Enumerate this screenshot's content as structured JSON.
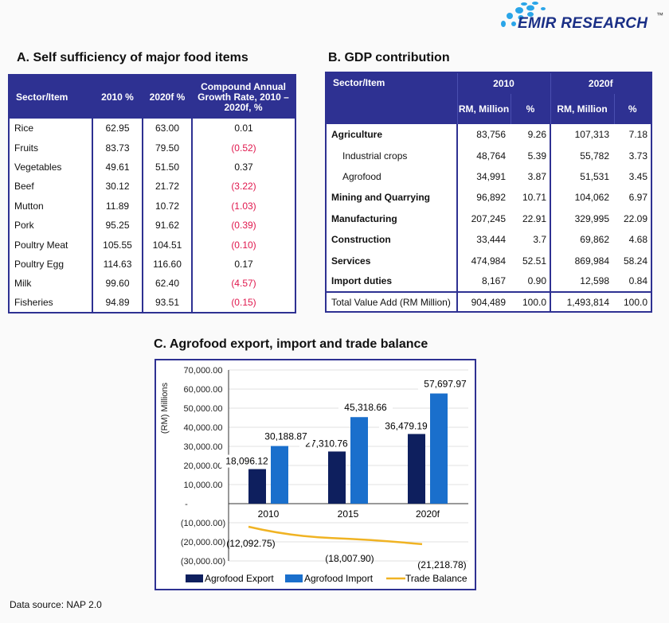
{
  "logo": {
    "text": "EMIR RESEARCH",
    "tm": "™"
  },
  "tableA": {
    "title": "A. Self sufficiency of major food items",
    "headers": [
      "Sector/Item",
      "2010 %",
      "2020f %",
      "Compound Annual Growth Rate, 2010 –2020f, %"
    ],
    "rows": [
      [
        "Rice",
        "62.95",
        "63.00",
        "0.01"
      ],
      [
        "Fruits",
        "83.73",
        "79.50",
        "(0.52)"
      ],
      [
        "Vegetables",
        "49.61",
        "51.50",
        "0.37"
      ],
      [
        "Beef",
        "30.12",
        "21.72",
        "(3.22)"
      ],
      [
        "Mutton",
        "11.89",
        "10.72",
        "(1.03)"
      ],
      [
        "Pork",
        "95.25",
        "91.62",
        "(0.39)"
      ],
      [
        "Poultry Meat",
        "105.55",
        "104.51",
        "(0.10)"
      ],
      [
        "Poultry Egg",
        "114.63",
        "116.60",
        "0.17"
      ],
      [
        "Milk",
        "99.60",
        "62.40",
        "(4.57)"
      ],
      [
        "Fisheries",
        "94.89",
        "93.51",
        "(0.15)"
      ]
    ]
  },
  "tableB": {
    "title": "B. GDP contribution",
    "header_item": "Sector/Item",
    "years": [
      "2010",
      "2020f"
    ],
    "subheaders": [
      "RM, Million",
      "%",
      "RM, Million",
      "%"
    ],
    "rows": [
      {
        "label": "Agriculture",
        "sub": false,
        "v": [
          "83,756",
          "9.26",
          "107,313",
          "7.18"
        ]
      },
      {
        "label": "Industrial crops",
        "sub": true,
        "v": [
          "48,764",
          "5.39",
          "55,782",
          "3.73"
        ]
      },
      {
        "label": "Agrofood",
        "sub": true,
        "v": [
          "34,991",
          "3.87",
          "51,531",
          "3.45"
        ]
      },
      {
        "label": "Mining and Quarrying",
        "sub": false,
        "v": [
          "96,892",
          "10.71",
          "104,062",
          "6.97"
        ]
      },
      {
        "label": "Manufacturing",
        "sub": false,
        "v": [
          "207,245",
          "22.91",
          "329,995",
          "22.09"
        ]
      },
      {
        "label": "Construction",
        "sub": false,
        "v": [
          "33,444",
          "3.7",
          "69,862",
          "4.68"
        ]
      },
      {
        "label": "Services",
        "sub": false,
        "v": [
          "474,984",
          "52.51",
          "869,984",
          "58.24"
        ]
      },
      {
        "label": "Import duties",
        "sub": false,
        "v": [
          "8,167",
          "0.90",
          "12,598",
          "0.84"
        ]
      }
    ],
    "total": {
      "label": "Total Value Add (RM Million)",
      "v": [
        "904,489",
        "100.0",
        "1,493,814",
        "100.0"
      ]
    }
  },
  "chart_data": {
    "type": "bar",
    "title": "C. Agrofood export, import and trade balance",
    "ylabel": "(RM) Millions",
    "categories": [
      "2010",
      "2015",
      "2020f"
    ],
    "ylim": [
      -30000,
      70000
    ],
    "yticks": [
      "70,000.00",
      "60,000.00",
      "50,000.00",
      "40,000.00",
      "30,000.00",
      "20,000.00",
      "10,000.00",
      "-",
      "(10,000.00)",
      "(20,000.00)",
      "(30,000.00)"
    ],
    "grid": true,
    "legend": "bottom",
    "series": [
      {
        "name": "Agrofood Export",
        "type": "bar",
        "color": "#0e1f5e",
        "values": [
          18096.12,
          27310.76,
          36479.19
        ],
        "labels": [
          "18,096.12",
          "27,310.76",
          "36,479.19"
        ]
      },
      {
        "name": "Agrofood Import",
        "type": "bar",
        "color": "#1a6fcc",
        "values": [
          30188.87,
          45318.66,
          57697.97
        ],
        "labels": [
          "30,188.87",
          "45,318.66",
          "57,697.97"
        ]
      },
      {
        "name": "Trade Balance",
        "type": "line",
        "color": "#f0b323",
        "values": [
          -12092.75,
          -18007.9,
          -21218.78
        ],
        "labels": [
          "(12,092.75)",
          "(18,007.90)",
          "(21,218.78)"
        ]
      }
    ]
  },
  "footer": {
    "source": "Data source: NAP 2.0"
  }
}
